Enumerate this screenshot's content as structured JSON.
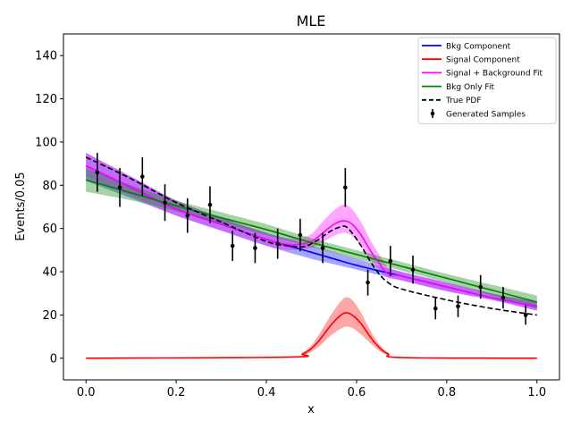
{
  "chart_data": {
    "type": "line",
    "title": "MLE",
    "xlabel": "x",
    "ylabel": "Events/0.05",
    "xlim": [
      -0.05,
      1.05
    ],
    "ylim": [
      -10,
      150
    ],
    "xticks": [
      0.0,
      0.2,
      0.4,
      0.6,
      0.8,
      1.0
    ],
    "xtick_labels": [
      "0.0",
      "0.2",
      "0.4",
      "0.6",
      "0.8",
      "1.0"
    ],
    "yticks": [
      0,
      20,
      40,
      60,
      80,
      100,
      120,
      140
    ],
    "ytick_labels": [
      "0",
      "20",
      "40",
      "60",
      "80",
      "100",
      "120",
      "140"
    ],
    "grid": false,
    "legend_position": "top-right",
    "colors": {
      "bkg": "#0000ff",
      "signal": "#ff0000",
      "sigbkg": "#ff00ff",
      "bkgonly": "#008000",
      "truepdf": "#000000",
      "samples": "#000000"
    },
    "legend": [
      {
        "key": "bkg",
        "label": "Bkg Component",
        "style": "line"
      },
      {
        "key": "signal",
        "label": "Signal Component",
        "style": "line"
      },
      {
        "key": "sigbkg",
        "label": "Signal + Background Fit",
        "style": "line"
      },
      {
        "key": "bkgonly",
        "label": "Bkg Only Fit",
        "style": "line"
      },
      {
        "key": "truepdf",
        "label": "True PDF",
        "style": "dashed"
      },
      {
        "key": "samples",
        "label": "Generated Samples",
        "style": "errorbar"
      }
    ],
    "series": [
      {
        "key": "bkg",
        "x": [
          0.0,
          0.1,
          0.2,
          0.3,
          0.4,
          0.5,
          0.6,
          0.7,
          0.8,
          0.9,
          1.0
        ],
        "values": [
          89,
          79,
          69,
          62,
          55,
          49,
          43,
          38,
          33,
          28,
          24
        ],
        "band_lo": [
          82,
          74,
          66,
          59,
          52,
          46,
          41,
          36,
          31,
          27,
          22
        ],
        "band_hi": [
          95,
          84,
          73,
          65,
          58,
          52,
          46,
          40,
          35,
          30,
          26
        ]
      },
      {
        "key": "signal",
        "x": [
          0.0,
          0.45,
          0.48,
          0.5,
          0.52,
          0.54,
          0.56,
          0.575,
          0.59,
          0.61,
          0.63,
          0.65,
          0.67,
          0.7,
          1.0
        ],
        "values": [
          0,
          0.5,
          2,
          4.5,
          9,
          14.5,
          19,
          21,
          20,
          16,
          10,
          5,
          2,
          0.3,
          0
        ],
        "band_lo": [
          0,
          0.3,
          1.4,
          3,
          6,
          10,
          13,
          14.5,
          14,
          11,
          7,
          3.5,
          1.3,
          0.2,
          0
        ],
        "band_hi": [
          0,
          0.7,
          2.7,
          6,
          12,
          19,
          25,
          28,
          27,
          21,
          13,
          6.5,
          2.7,
          0.5,
          0
        ]
      },
      {
        "key": "sigbkg",
        "x": [
          0.0,
          0.1,
          0.2,
          0.3,
          0.4,
          0.45,
          0.48,
          0.5,
          0.52,
          0.54,
          0.56,
          0.575,
          0.59,
          0.61,
          0.63,
          0.65,
          0.67,
          0.7,
          0.8,
          0.9,
          1.0
        ],
        "values": [
          89,
          79,
          69,
          62,
          55,
          52.5,
          53,
          54,
          57,
          60.5,
          63,
          63.5,
          62,
          57,
          50,
          44,
          39,
          38,
          33,
          28,
          24
        ],
        "band_lo": [
          84,
          75,
          66,
          59,
          52,
          50,
          50.5,
          51,
          53,
          55.5,
          57.5,
          58,
          56.5,
          52,
          46,
          41,
          37,
          36,
          31,
          27,
          22
        ],
        "band_hi": [
          95,
          84,
          73,
          65,
          58,
          55.5,
          56,
          57.5,
          62,
          66.5,
          70,
          71,
          69,
          63,
          55,
          48,
          42,
          40,
          35,
          30,
          26
        ]
      },
      {
        "key": "bkgonly",
        "x": [
          0.0,
          0.1,
          0.2,
          0.3,
          0.4,
          0.5,
          0.6,
          0.7,
          0.8,
          0.9,
          1.0
        ],
        "values": [
          82.5,
          76.5,
          70.5,
          65,
          59.5,
          53.5,
          48,
          42.5,
          37,
          31.5,
          26
        ],
        "band_lo": [
          77,
          73,
          68,
          62.5,
          57,
          51.5,
          46,
          40.5,
          35,
          29,
          23
        ],
        "band_hi": [
          88,
          80,
          73,
          67.5,
          62,
          55.5,
          50,
          44.5,
          39,
          34,
          29
        ]
      },
      {
        "key": "truepdf",
        "style": "dashed",
        "x": [
          0.0,
          0.1,
          0.2,
          0.3,
          0.4,
          0.45,
          0.48,
          0.5,
          0.52,
          0.54,
          0.56,
          0.575,
          0.59,
          0.61,
          0.63,
          0.65,
          0.67,
          0.7,
          0.8,
          0.9,
          1.0
        ],
        "values": [
          93,
          83,
          72,
          63,
          54,
          52,
          51.5,
          53,
          55.5,
          58.5,
          60.5,
          61,
          58,
          52,
          45,
          39,
          35,
          32,
          27,
          23,
          20
        ]
      }
    ],
    "samples": {
      "x": [
        0.025,
        0.075,
        0.125,
        0.175,
        0.225,
        0.275,
        0.325,
        0.375,
        0.425,
        0.475,
        0.525,
        0.575,
        0.625,
        0.675,
        0.725,
        0.775,
        0.825,
        0.875,
        0.925,
        0.975
      ],
      "y": [
        86,
        79,
        84,
        72,
        66,
        71,
        52,
        51,
        53,
        57,
        51,
        79,
        35,
        45,
        41,
        23,
        24,
        33,
        28,
        20
      ],
      "err": [
        9,
        9,
        9,
        8.5,
        8,
        8.5,
        7,
        7,
        7,
        7.5,
        7,
        9,
        6,
        7,
        6.5,
        5,
        5,
        5.5,
        5,
        4.5
      ]
    }
  }
}
